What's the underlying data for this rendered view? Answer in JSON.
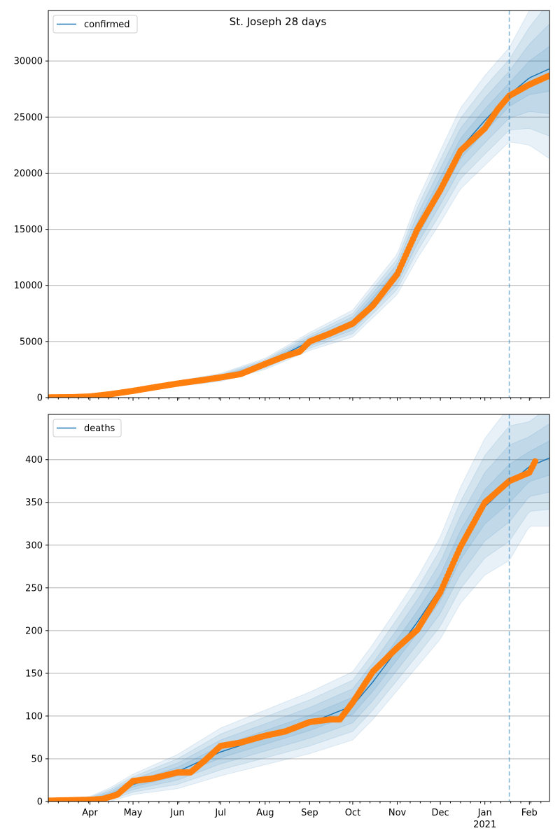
{
  "title": "St. Joseph 28 days",
  "colors": {
    "model_line": "#1f77b4",
    "band": "#1f77b4",
    "observed": "#ff7f0e",
    "grid": "#b0b0b0",
    "forecast_line": "#1f77b4"
  },
  "x_axis": {
    "month_ticks": [
      {
        "date": "2020-04-01",
        "label": "Apr"
      },
      {
        "date": "2020-05-01",
        "label": "May"
      },
      {
        "date": "2020-06-01",
        "label": "Jun"
      },
      {
        "date": "2020-07-01",
        "label": "Jul"
      },
      {
        "date": "2020-08-01",
        "label": "Aug"
      },
      {
        "date": "2020-09-01",
        "label": "Sep"
      },
      {
        "date": "2020-10-01",
        "label": "Oct"
      },
      {
        "date": "2020-11-01",
        "label": "Nov"
      },
      {
        "date": "2020-12-01",
        "label": "Dec"
      },
      {
        "date": "2021-01-01",
        "label": "Jan"
      },
      {
        "date": "2021-02-01",
        "label": "Feb"
      }
    ],
    "year_label": "2021",
    "xlim": [
      "2020-03-03",
      "2021-02-15"
    ],
    "forecast_start": "2021-01-18"
  },
  "chart_data": [
    {
      "type": "line",
      "legend": "confirmed",
      "legend_position": "top-left",
      "grid": "horizontal",
      "ylim": [
        0,
        34500
      ],
      "yticks": [
        0,
        5000,
        10000,
        15000,
        20000,
        25000,
        30000
      ],
      "observed": {
        "x": [
          "2020-03-03",
          "2020-03-20",
          "2020-04-01",
          "2020-04-15",
          "2020-05-01",
          "2020-05-15",
          "2020-06-01",
          "2020-06-15",
          "2020-07-01",
          "2020-07-15",
          "2020-08-01",
          "2020-08-15",
          "2020-08-25",
          "2020-09-01",
          "2020-09-15",
          "2020-10-01",
          "2020-10-15",
          "2020-11-01",
          "2020-11-15",
          "2020-12-01",
          "2020-12-15",
          "2021-01-01",
          "2021-01-10",
          "2021-01-18",
          "2021-02-01",
          "2021-02-15"
        ],
        "y": [
          20,
          40,
          100,
          300,
          600,
          900,
          1250,
          1500,
          1800,
          2100,
          3000,
          3700,
          4100,
          5000,
          5700,
          6600,
          8200,
          11000,
          15000,
          18500,
          22000,
          24000,
          25700,
          26900,
          27900,
          28700
        ]
      },
      "model": {
        "x": [
          "2020-03-03",
          "2020-04-01",
          "2020-05-01",
          "2020-06-01",
          "2020-07-01",
          "2020-08-01",
          "2020-09-01",
          "2020-10-01",
          "2020-11-01",
          "2020-11-15",
          "2020-12-01",
          "2020-12-15",
          "2021-01-01",
          "2021-01-18",
          "2021-02-01",
          "2021-02-15"
        ],
        "y": [
          20,
          100,
          600,
          1250,
          1800,
          3000,
          5000,
          6600,
          11000,
          15000,
          18800,
          22200,
          24700,
          27000,
          28500,
          29300
        ],
        "spread": [
          10,
          30,
          80,
          120,
          180,
          250,
          400,
          600,
          900,
          1300,
          1600,
          1800,
          2000,
          2100,
          3000,
          4000
        ]
      }
    },
    {
      "type": "line",
      "legend": "deaths",
      "legend_position": "top-left",
      "grid": "horizontal",
      "ylim": [
        0,
        453
      ],
      "yticks": [
        0,
        50,
        100,
        150,
        200,
        250,
        300,
        350,
        400
      ],
      "observed": {
        "x": [
          "2020-03-03",
          "2020-04-01",
          "2020-04-10",
          "2020-04-20",
          "2020-05-01",
          "2020-05-15",
          "2020-06-01",
          "2020-06-10",
          "2020-06-20",
          "2020-07-01",
          "2020-07-15",
          "2020-08-01",
          "2020-08-15",
          "2020-09-01",
          "2020-09-15",
          "2020-09-22",
          "2020-10-01",
          "2020-10-15",
          "2020-11-01",
          "2020-11-15",
          "2020-12-01",
          "2020-12-15",
          "2021-01-01",
          "2021-01-18",
          "2021-02-01",
          "2021-02-05"
        ],
        "y": [
          1,
          2,
          3,
          8,
          24,
          27,
          34,
          34,
          48,
          65,
          69,
          77,
          82,
          93,
          96,
          96,
          116,
          152,
          180,
          201,
          245,
          298,
          350,
          375,
          385,
          398
        ]
      },
      "model": {
        "x": [
          "2020-03-03",
          "2020-04-01",
          "2020-04-15",
          "2020-05-01",
          "2020-06-01",
          "2020-07-01",
          "2020-08-01",
          "2020-09-01",
          "2020-10-01",
          "2020-10-15",
          "2020-11-01",
          "2020-11-15",
          "2020-12-01",
          "2020-12-15",
          "2021-01-01",
          "2021-01-18",
          "2021-02-01",
          "2021-02-15"
        ],
        "y": [
          1,
          2,
          8,
          20,
          35,
          58,
          75,
          92,
          112,
          140,
          178,
          210,
          250,
          300,
          345,
          372,
          392,
          402
        ],
        "spread": [
          1,
          2,
          4,
          6,
          10,
          14,
          16,
          18,
          20,
          22,
          24,
          26,
          30,
          34,
          40,
          45,
          35,
          40
        ]
      }
    }
  ]
}
